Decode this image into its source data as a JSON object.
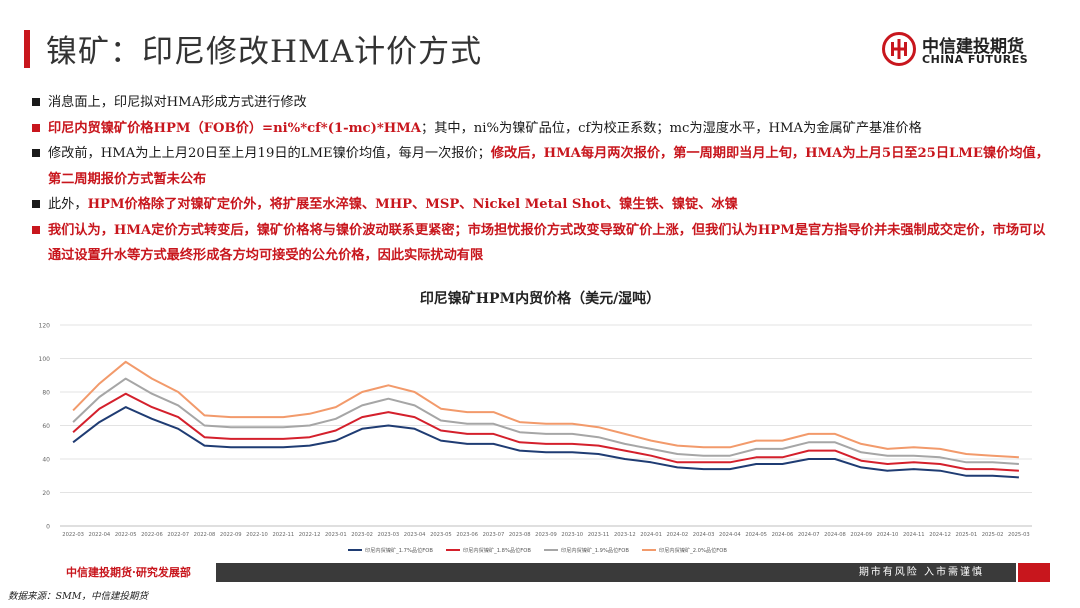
{
  "header": {
    "title": "镍矿：印尼修改HMA计价方式"
  },
  "logo": {
    "cn": "中信建投期货",
    "en": "CHINA FUTURES"
  },
  "bullets": [
    {
      "parts": [
        {
          "text": "消息面上，印尼拟对HMA形成方式进行修改",
          "red": false
        }
      ]
    },
    {
      "parts": [
        {
          "text": "印尼内贸镍矿价格HPM（FOB价）=ni%*cf*(1-mc)*HMA",
          "red": true
        },
        {
          "text": "；其中，ni%为镍矿品位，cf为校正系数；mc为湿度水平，HMA为金属矿产基准价格",
          "red": false
        }
      ]
    },
    {
      "parts": [
        {
          "text": "修改前，HMA为上上月20日至上月19日的LME镍价均值，每月一次报价；",
          "red": false
        },
        {
          "text": "修改后，HMA每月两次报价，第一周期即当月上旬，HMA为上月5日至25日LME镍价均值，第二周期报价方式暂未公布",
          "red": true
        }
      ]
    },
    {
      "parts": [
        {
          "text": "此外，",
          "red": false
        },
        {
          "text": "HPM价格除了对镍矿定价外，将扩展至水淬镍、MHP、MSP、Nickel Metal Shot、镍生铁、镍锭、冰镍",
          "red": true
        }
      ]
    },
    {
      "parts": [
        {
          "text": "我们认为，HMA定价方式转变后，镍矿价格将与镍价波动联系更紧密；市场担忧报价方式改变导致矿价上涨，但我们认为HPM是官方指导价并未强制成交定价，市场可以通过设置升水等方式最终形成各方均可接受的公允价格，因此实际扰动有限",
          "red": true
        }
      ]
    }
  ],
  "colors": {
    "accent": "#c8161d",
    "footer_bg": "#3a3a3a"
  },
  "chart_data": {
    "type": "line",
    "title": "印尼镍矿HPM内贸价格（美元/湿吨）",
    "ylim": [
      0,
      120
    ],
    "yticks": [
      0,
      20,
      40,
      60,
      80,
      100,
      120
    ],
    "grid": true,
    "legend_position": "bottom",
    "categories": [
      "2022-03",
      "2022-04",
      "2022-05",
      "2022-06",
      "2022-07",
      "2022-08",
      "2022-09",
      "2022-10",
      "2022-11",
      "2022-12",
      "2023-01",
      "2023-02",
      "2023-03",
      "2023-04",
      "2023-05",
      "2023-06",
      "2023-07",
      "2023-08",
      "2023-09",
      "2023-10",
      "2023-11",
      "2023-12",
      "2024-01",
      "2024-02",
      "2024-03",
      "2024-04",
      "2024-05",
      "2024-06",
      "2024-07",
      "2024-08",
      "2024-09",
      "2024-10",
      "2024-11",
      "2024-12",
      "2025-01",
      "2025-02",
      "2025-03"
    ],
    "series": [
      {
        "name": "印尼内贸镍矿_1.7%品位FOB",
        "color": "#1f3c73",
        "values": [
          50,
          62,
          71,
          64,
          58,
          48,
          47,
          47,
          47,
          48,
          51,
          58,
          60,
          58,
          51,
          49,
          49,
          45,
          44,
          44,
          43,
          40,
          38,
          35,
          34,
          34,
          37,
          37,
          40,
          40,
          35,
          33,
          34,
          33,
          30,
          30,
          29
        ]
      },
      {
        "name": "印尼内贸镍矿_1.8%品位FOB",
        "color": "#d4202c",
        "values": [
          56,
          70,
          79,
          71,
          65,
          53,
          52,
          52,
          52,
          53,
          57,
          65,
          68,
          65,
          57,
          55,
          55,
          50,
          49,
          49,
          48,
          45,
          42,
          38,
          38,
          38,
          41,
          41,
          45,
          45,
          39,
          37,
          38,
          37,
          34,
          34,
          33
        ]
      },
      {
        "name": "印尼内贸镍矿_1.9%品位FOB",
        "color": "#a6a6a6",
        "values": [
          62,
          77,
          88,
          79,
          72,
          60,
          59,
          59,
          59,
          60,
          64,
          72,
          76,
          72,
          63,
          61,
          61,
          56,
          55,
          55,
          53,
          49,
          46,
          43,
          42,
          42,
          46,
          46,
          50,
          50,
          44,
          42,
          42,
          41,
          38,
          38,
          37
        ]
      },
      {
        "name": "印尼内贸镍矿_2.0%品位FOB",
        "color": "#f29a6b",
        "values": [
          69,
          85,
          98,
          88,
          80,
          66,
          65,
          65,
          65,
          67,
          71,
          80,
          84,
          80,
          70,
          68,
          68,
          62,
          61,
          61,
          59,
          55,
          51,
          48,
          47,
          47,
          51,
          51,
          55,
          55,
          49,
          46,
          47,
          46,
          43,
          42,
          41
        ]
      }
    ]
  },
  "footer": {
    "left": "中信建投期货·研究发展部",
    "right": "期市有风险  入市需谨慎"
  },
  "source": "数据来源：SMM，中信建投期货"
}
